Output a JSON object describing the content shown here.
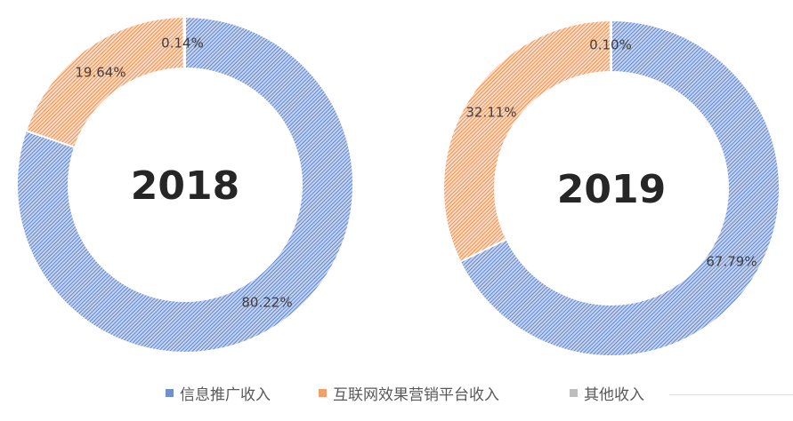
{
  "chart_data": [
    {
      "type": "pie",
      "title": "2018",
      "categories": [
        "信息推广收入",
        "互联网效果营销平台收入",
        "其他收入"
      ],
      "values": [
        80.22,
        19.64,
        0.14
      ],
      "value_labels": [
        "80.22%",
        "19.64%",
        "0.14%"
      ]
    },
    {
      "type": "pie",
      "title": "2019",
      "categories": [
        "信息推广收入",
        "互联网效果营销平台收入",
        "其他收入"
      ],
      "values": [
        67.79,
        32.11,
        0.1
      ],
      "value_labels": [
        "67.79%",
        "32.11%",
        "0.10%"
      ]
    }
  ],
  "legend": {
    "items": [
      {
        "label": "信息推广收入",
        "color": "#4472c4"
      },
      {
        "label": "互联网效果营销平台收入",
        "color": "#ed7d31"
      },
      {
        "label": "其他收入",
        "color": "#a5a5a5"
      }
    ]
  }
}
